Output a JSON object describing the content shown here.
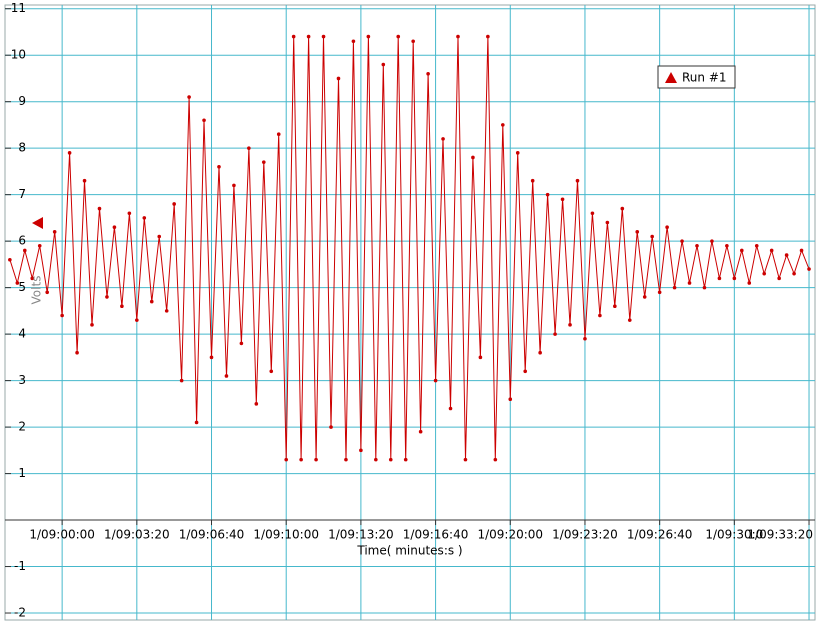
{
  "chart_data": {
    "type": "line",
    "x_label": "Time( minutes:s )",
    "y_label": "Volts",
    "legend": "top-right",
    "grid": true,
    "xlim": [
      -153,
      2016
    ],
    "ylim": [
      -2.15,
      11.08
    ],
    "xticks": [
      {
        "value": 0,
        "label": "1/09:00:00"
      },
      {
        "value": 200,
        "label": "1/09:03:20"
      },
      {
        "value": 400,
        "label": "1/09:06:40"
      },
      {
        "value": 600,
        "label": "1/09:10:00"
      },
      {
        "value": 800,
        "label": "1/09:13:20"
      },
      {
        "value": 1000,
        "label": "1/09:16:40"
      },
      {
        "value": 1200,
        "label": "1/09:20:00"
      },
      {
        "value": 1400,
        "label": "1/09:23:20"
      },
      {
        "value": 1600,
        "label": "1/09:26:40"
      },
      {
        "value": 1800,
        "label": "1/09:30:0"
      },
      {
        "value": 2000,
        "label": "1/09:33:20"
      }
    ],
    "yticks": [
      -2,
      -1,
      1,
      2,
      3,
      4,
      5,
      6,
      7,
      8,
      9,
      10,
      11
    ],
    "x": [
      -140,
      -120,
      -100,
      -80,
      -60,
      -40,
      -20,
      0,
      20,
      40,
      60,
      80,
      100,
      120,
      140,
      160,
      180,
      200,
      220,
      240,
      260,
      280,
      300,
      320,
      340,
      360,
      380,
      400,
      420,
      440,
      460,
      480,
      500,
      520,
      540,
      560,
      580,
      600,
      620,
      640,
      660,
      680,
      700,
      720,
      740,
      760,
      780,
      800,
      820,
      840,
      860,
      880,
      900,
      920,
      940,
      960,
      980,
      1000,
      1020,
      1040,
      1060,
      1080,
      1100,
      1120,
      1140,
      1160,
      1180,
      1200,
      1220,
      1240,
      1260,
      1280,
      1300,
      1320,
      1340,
      1360,
      1380,
      1400,
      1420,
      1440,
      1460,
      1480,
      1500,
      1520,
      1540,
      1560,
      1580,
      1600,
      1620,
      1640,
      1660,
      1680,
      1700,
      1720,
      1740,
      1760,
      1780,
      1800,
      1820,
      1840,
      1860,
      1880,
      1900,
      1920,
      1940,
      1960,
      1980,
      2000
    ],
    "series": [
      {
        "name": "Run #1",
        "color": "#cc0000",
        "values": [
          5.6,
          5.1,
          5.8,
          5.2,
          5.9,
          4.9,
          6.2,
          4.4,
          7.9,
          3.6,
          7.3,
          4.2,
          6.7,
          4.8,
          6.3,
          4.6,
          6.6,
          4.3,
          6.5,
          4.7,
          6.1,
          4.5,
          6.8,
          3.0,
          9.1,
          2.1,
          8.6,
          3.5,
          7.6,
          3.1,
          7.2,
          3.8,
          8.0,
          2.5,
          7.7,
          3.2,
          8.3,
          1.3,
          10.4,
          1.3,
          10.4,
          1.3,
          10.4,
          2.0,
          9.5,
          1.3,
          10.3,
          1.5,
          10.4,
          1.3,
          9.8,
          1.3,
          10.4,
          1.3,
          10.3,
          1.9,
          9.6,
          3.0,
          8.2,
          2.4,
          10.4,
          1.3,
          7.8,
          3.5,
          10.4,
          1.3,
          8.5,
          2.6,
          7.9,
          3.2,
          7.3,
          3.6,
          7.0,
          4.0,
          6.9,
          4.2,
          7.3,
          3.9,
          6.6,
          4.4,
          6.4,
          4.6,
          6.7,
          4.3,
          6.2,
          4.8,
          6.1,
          4.9,
          6.3,
          5.0,
          6.0,
          5.1,
          5.9,
          5.0,
          6.0,
          5.2,
          5.9,
          5.2,
          5.8,
          5.1,
          5.9,
          5.3,
          5.8,
          5.2,
          5.7,
          5.3,
          5.8,
          5.4
        ]
      }
    ]
  }
}
